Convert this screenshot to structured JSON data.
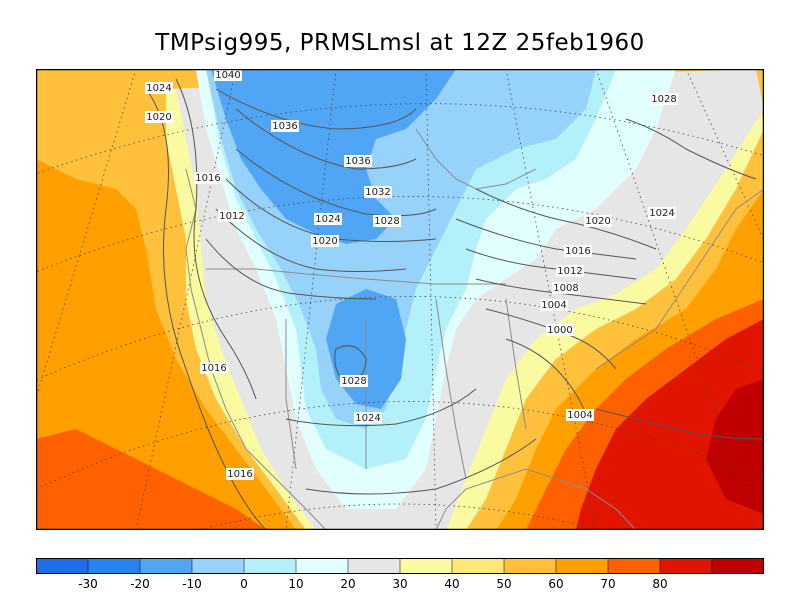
{
  "title": "TMPsig995, PRMSLmsl at 12Z  25feb1960",
  "fields": {
    "shaded": "TMPsig995",
    "contoured": "PRMSLmsl"
  },
  "colorbar": {
    "colors": [
      "#1e6eeb",
      "#2882f0",
      "#50a5f5",
      "#96d2fa",
      "#b4f0fa",
      "#e1ffff",
      "#e6e6e6",
      "#fafaa0",
      "#ffe878",
      "#ffc03c",
      "#ffa000",
      "#ff6000",
      "#e11400",
      "#c00000"
    ],
    "tick_labels": [
      "-30",
      "-20",
      "-10",
      "0",
      "10",
      "20",
      "30",
      "40",
      "50",
      "60",
      "70",
      "80"
    ]
  },
  "isobar_labels": [
    "1040",
    "1024",
    "1028",
    "1020",
    "1036",
    "1036",
    "1016",
    "1032",
    "1012",
    "1024",
    "1028",
    "1020",
    "1020",
    "1024",
    "1016",
    "1012",
    "1008",
    "1004",
    "1000",
    "1016",
    "1028",
    "1024",
    "1004",
    "1016"
  ],
  "colors": {
    "contour": "#555555",
    "coast": "#8c8c8c",
    "frame": "#000000"
  }
}
